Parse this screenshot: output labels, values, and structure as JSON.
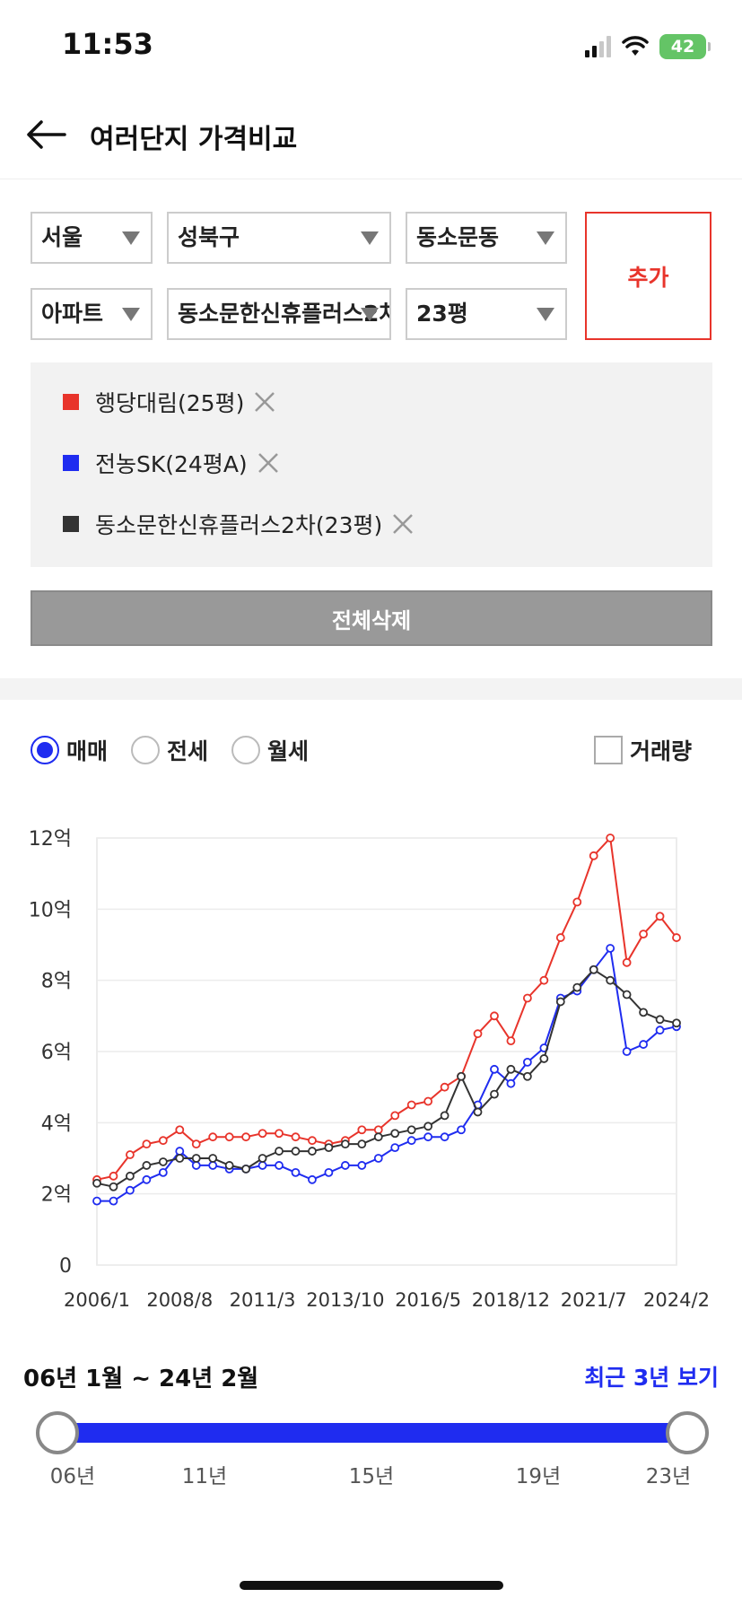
{
  "status": {
    "time": "11:53",
    "battery": "42"
  },
  "header": {
    "title": "여러단지 가격비교"
  },
  "filters": {
    "city": "서울",
    "district": "성북구",
    "dong": "동소문동",
    "type": "아파트",
    "complex": "동소문한신휴플러스2차",
    "size": "23평",
    "add_label": "추가"
  },
  "selected": [
    {
      "label": "행당대림(25평)",
      "color": "#e8342b"
    },
    {
      "label": "전농SK(24평A)",
      "color": "#1f2cf0"
    },
    {
      "label": "동소문한신휴플러스2차(23평)",
      "color": "#333333"
    }
  ],
  "delete_all_label": "전체삭제",
  "trade_types": [
    {
      "label": "매매",
      "selected": true
    },
    {
      "label": "전세",
      "selected": false
    },
    {
      "label": "월세",
      "selected": false
    }
  ],
  "volume_label": "거래량",
  "chart_data": {
    "type": "line",
    "x": [
      "2006/1",
      "2006/7",
      "2007/1",
      "2007/7",
      "2008/1",
      "2008/8",
      "2009/1",
      "2009/7",
      "2010/1",
      "2010/7",
      "2011/3",
      "2011/9",
      "2012/3",
      "2012/9",
      "2013/3",
      "2013/10",
      "2014/4",
      "2014/10",
      "2015/4",
      "2015/10",
      "2016/5",
      "2016/11",
      "2017/5",
      "2017/11",
      "2018/5",
      "2018/12",
      "2019/6",
      "2019/12",
      "2020/6",
      "2020/12",
      "2021/7",
      "2022/1",
      "2022/7",
      "2023/1",
      "2023/7",
      "2024/2"
    ],
    "x_tick_labels": [
      "2006/1",
      "2008/8",
      "2011/3",
      "2013/10",
      "2016/5",
      "2018/12",
      "2021/7",
      "2024/2"
    ],
    "y_tick_labels": [
      "0",
      "2억",
      "4억",
      "6억",
      "8억",
      "10억",
      "12억"
    ],
    "ylim": [
      0,
      12
    ],
    "series": [
      {
        "name": "행당대림(25평)",
        "color": "#e8342b",
        "values": [
          2.4,
          2.5,
          3.1,
          3.4,
          3.5,
          3.8,
          3.4,
          3.6,
          3.6,
          3.6,
          3.7,
          3.7,
          3.6,
          3.5,
          3.4,
          3.5,
          3.8,
          3.8,
          4.2,
          4.5,
          4.6,
          5.0,
          5.3,
          6.5,
          7.0,
          6.3,
          7.5,
          8.0,
          9.2,
          10.2,
          11.5,
          12.0,
          8.5,
          9.3,
          9.8,
          9.2
        ]
      },
      {
        "name": "전농SK(24평A)",
        "color": "#1f2cf0",
        "values": [
          1.8,
          1.8,
          2.1,
          2.4,
          2.6,
          3.2,
          2.8,
          2.8,
          2.7,
          2.7,
          2.8,
          2.8,
          2.6,
          2.4,
          2.6,
          2.8,
          2.8,
          3.0,
          3.3,
          3.5,
          3.6,
          3.6,
          3.8,
          4.5,
          5.5,
          5.1,
          5.7,
          6.1,
          7.5,
          7.7,
          8.3,
          8.9,
          6.0,
          6.2,
          6.6,
          6.7
        ]
      },
      {
        "name": "동소문한신휴플러스2차(23평)",
        "color": "#333333",
        "values": [
          2.3,
          2.2,
          2.5,
          2.8,
          2.9,
          3.0,
          3.0,
          3.0,
          2.8,
          2.7,
          3.0,
          3.2,
          3.2,
          3.2,
          3.3,
          3.4,
          3.4,
          3.6,
          3.7,
          3.8,
          3.9,
          4.2,
          5.3,
          4.3,
          4.8,
          5.5,
          5.3,
          5.8,
          7.4,
          7.8,
          8.3,
          8.0,
          7.6,
          7.1,
          6.9,
          6.8
        ]
      }
    ]
  },
  "range": {
    "label": "06년 1월 ~ 24년 2월",
    "recent_label": "최근 3년 보기",
    "ticks": [
      "06년",
      "11년",
      "15년",
      "19년",
      "23년"
    ]
  }
}
